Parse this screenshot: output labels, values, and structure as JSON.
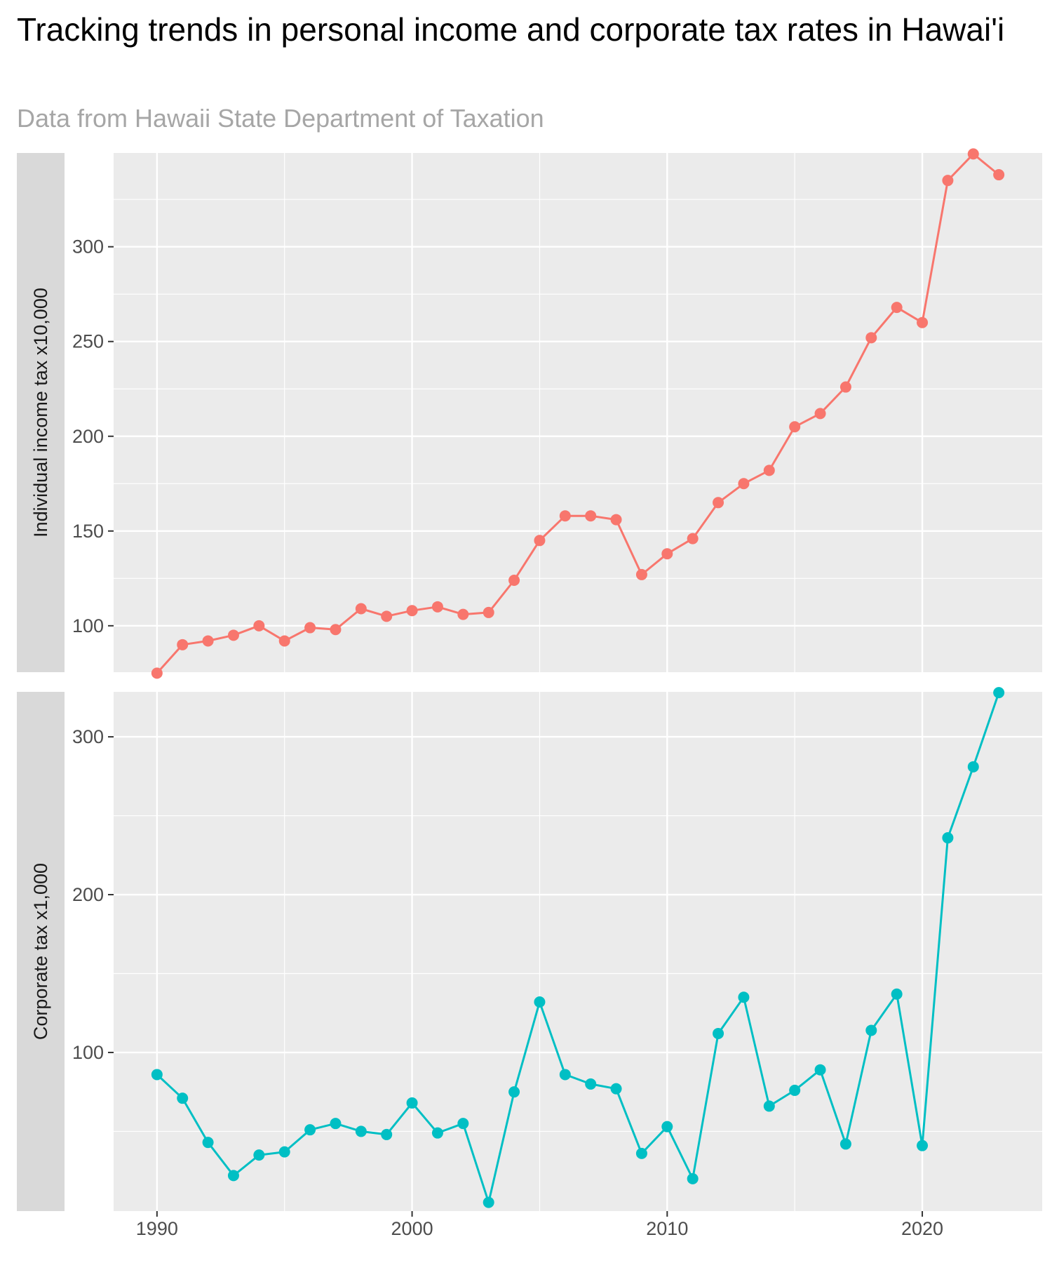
{
  "title": "Tracking trends in personal income and corporate tax rates in Hawai'i",
  "subtitle": "Data from Hawaii State Department of Taxation",
  "chart_data": [
    {
      "type": "line",
      "panel_label": "Individual  income  tax  x10,000",
      "color": "#F8766D",
      "x": [
        1990,
        1991,
        1992,
        1993,
        1994,
        1995,
        1996,
        1997,
        1998,
        1999,
        2000,
        2001,
        2002,
        2003,
        2004,
        2005,
        2006,
        2007,
        2008,
        2009,
        2010,
        2011,
        2012,
        2013,
        2014,
        2015,
        2016,
        2017,
        2018,
        2019,
        2020,
        2021,
        2022,
        2023
      ],
      "values": [
        75,
        90,
        92,
        95,
        100,
        92,
        99,
        98,
        109,
        105,
        108,
        110,
        106,
        107,
        124,
        145,
        158,
        158,
        156,
        127,
        138,
        146,
        165,
        175,
        182,
        205,
        212,
        226,
        252,
        268,
        260,
        335,
        349,
        338
      ],
      "xlim": [
        1988.3,
        2024.7
      ],
      "ylim": [
        75.5,
        349.5
      ],
      "y_ticks": [
        100,
        150,
        200,
        250,
        300
      ],
      "y_tick_labels": [
        "100",
        "150",
        "200",
        "250",
        "300"
      ],
      "grid": true
    },
    {
      "type": "line",
      "panel_label": "Corporate  tax  x1,000",
      "color": "#00BFC4",
      "x": [
        1990,
        1991,
        1992,
        1993,
        1994,
        1995,
        1996,
        1997,
        1998,
        1999,
        2000,
        2001,
        2002,
        2003,
        2004,
        2005,
        2006,
        2007,
        2008,
        2009,
        2010,
        2011,
        2012,
        2013,
        2014,
        2015,
        2016,
        2017,
        2018,
        2019,
        2020,
        2021,
        2022,
        2023
      ],
      "values": [
        86,
        71,
        43,
        22,
        35,
        37,
        51,
        55,
        50,
        48,
        68,
        49,
        55,
        5,
        75,
        132,
        86,
        80,
        77,
        36,
        53,
        20,
        112,
        135,
        66,
        76,
        89,
        42,
        114,
        137,
        41,
        236,
        281,
        328
      ],
      "xlim": [
        1988.3,
        2024.7
      ],
      "ylim": [
        -0.5,
        328.5
      ],
      "y_ticks": [
        100,
        200,
        300
      ],
      "y_tick_labels": [
        "100",
        "200",
        "300"
      ],
      "grid": true
    }
  ],
  "x_axis": {
    "ticks": [
      1990,
      2000,
      2010,
      2020
    ],
    "tick_labels": [
      "1990",
      "2000",
      "2010",
      "2020"
    ]
  }
}
